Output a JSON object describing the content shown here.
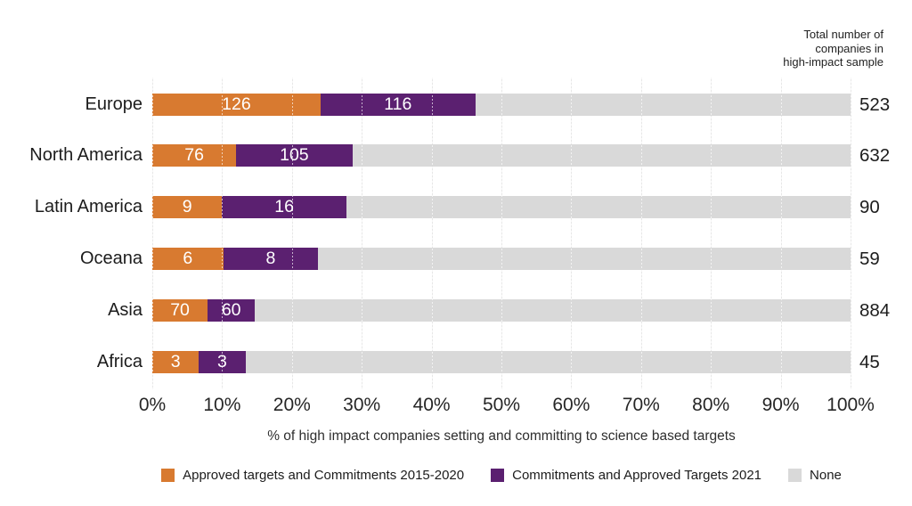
{
  "chart_data": {
    "type": "bar",
    "orientation": "horizontal",
    "stacked": true,
    "title": "",
    "xlabel": "% of high impact companies setting and committing to science based targets",
    "x_ticks": [
      "0%",
      "10%",
      "20%",
      "30%",
      "40%",
      "50%",
      "60%",
      "70%",
      "80%",
      "90%",
      "100%"
    ],
    "xlim": [
      0,
      100
    ],
    "grid": "vertical",
    "legend_position": "bottom",
    "totals_column_title": "Total number of\ncompanies in\nhigh-impact sample",
    "categories": [
      "Europe",
      "North America",
      "Latin America",
      "Oceana",
      "Asia",
      "Africa"
    ],
    "series": [
      {
        "name": "Approved targets and Commitments 2015-2020",
        "color": "#D87A30",
        "values": [
          126,
          76,
          9,
          6,
          70,
          3
        ]
      },
      {
        "name": "Commitments and Approved Targets 2021",
        "color": "#5B2070",
        "values": [
          116,
          105,
          16,
          8,
          60,
          3
        ]
      },
      {
        "name": "None",
        "color": "#D9D9D9",
        "remainder": true
      }
    ],
    "totals": [
      523,
      632,
      90,
      59,
      884,
      45
    ],
    "colors": {
      "background": "#FFFFFF",
      "gridline": "#E7E7E7",
      "text": "#1C1C1C",
      "bar_value_text": "#FFFFFF"
    }
  }
}
